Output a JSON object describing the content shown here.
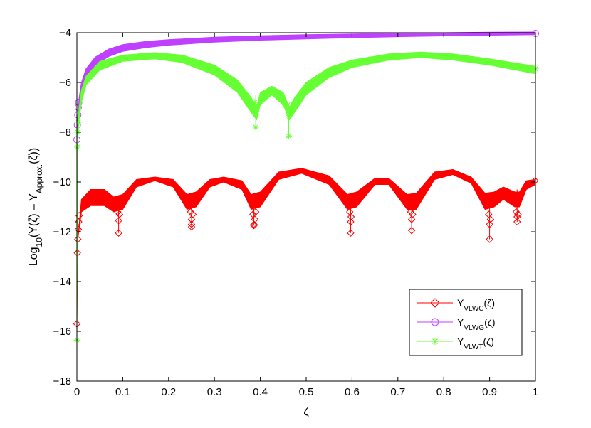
{
  "chart_data": {
    "type": "line",
    "xlabel": "ζ",
    "ylabel": {
      "prefix": "Log",
      "prefix_sub": "10",
      "body": "(Y(ζ) – Y",
      "body_sub": "Approx.",
      "suffix": "(ζ))"
    },
    "xlim": [
      0,
      1
    ],
    "ylim": [
      -18,
      -4
    ],
    "xticks": [
      0,
      0.1,
      0.2,
      0.3,
      0.4,
      0.5,
      0.6,
      0.7,
      0.8,
      0.9,
      1
    ],
    "yticks": [
      -18,
      -16,
      -14,
      -12,
      -10,
      -8,
      -6,
      -4
    ],
    "xtick_labels": [
      "0",
      "0.1",
      "0.2",
      "0.3",
      "0.4",
      "0.5",
      "0.6",
      "0.7",
      "0.8",
      "0.9",
      "1"
    ],
    "ytick_labels": [
      "−18",
      "−16",
      "−14",
      "−12",
      "−10",
      "−8",
      "−6",
      "−4"
    ],
    "grid": false,
    "legend_position": "lower-right",
    "series": [
      {
        "id": "vlwc",
        "legend": {
          "main": "Y",
          "sub": "VLWC",
          "tail": "(ζ)"
        },
        "color": "#ff0000",
        "marker": "diamond",
        "band_lower": [
          [
            0.002,
            -12.3
          ],
          [
            0.01,
            -11.2
          ],
          [
            0.03,
            -10.95
          ],
          [
            0.06,
            -10.95
          ],
          [
            0.08,
            -11.2
          ],
          [
            0.1,
            -11.1
          ],
          [
            0.13,
            -10.2
          ],
          [
            0.17,
            -9.95
          ],
          [
            0.21,
            -10.2
          ],
          [
            0.24,
            -11.1
          ],
          [
            0.26,
            -11.0
          ],
          [
            0.29,
            -10.2
          ],
          [
            0.32,
            -10.0
          ],
          [
            0.36,
            -10.3
          ],
          [
            0.38,
            -11.1
          ],
          [
            0.4,
            -11.0
          ],
          [
            0.44,
            -9.9
          ],
          [
            0.49,
            -9.65
          ],
          [
            0.55,
            -10.1
          ],
          [
            0.59,
            -11.1
          ],
          [
            0.61,
            -11.0
          ],
          [
            0.65,
            -10.1
          ],
          [
            0.68,
            -10.1
          ],
          [
            0.72,
            -11.1
          ],
          [
            0.74,
            -11.1
          ],
          [
            0.78,
            -9.9
          ],
          [
            0.82,
            -9.7
          ],
          [
            0.86,
            -10.05
          ],
          [
            0.89,
            -11.1
          ],
          [
            0.91,
            -11.0
          ],
          [
            0.93,
            -10.7
          ],
          [
            0.955,
            -11.0
          ],
          [
            0.965,
            -11.0
          ],
          [
            0.98,
            -10.3
          ],
          [
            1.0,
            -10.1
          ]
        ],
        "band_upper": [
          [
            0.002,
            -12.3
          ],
          [
            0.01,
            -10.7
          ],
          [
            0.03,
            -10.3
          ],
          [
            0.06,
            -10.3
          ],
          [
            0.08,
            -10.6
          ],
          [
            0.1,
            -10.5
          ],
          [
            0.13,
            -9.9
          ],
          [
            0.17,
            -9.8
          ],
          [
            0.21,
            -9.9
          ],
          [
            0.24,
            -10.5
          ],
          [
            0.26,
            -10.4
          ],
          [
            0.29,
            -9.9
          ],
          [
            0.32,
            -9.8
          ],
          [
            0.36,
            -9.95
          ],
          [
            0.38,
            -10.5
          ],
          [
            0.4,
            -10.4
          ],
          [
            0.44,
            -9.6
          ],
          [
            0.49,
            -9.45
          ],
          [
            0.55,
            -9.75
          ],
          [
            0.59,
            -10.5
          ],
          [
            0.61,
            -10.4
          ],
          [
            0.65,
            -9.85
          ],
          [
            0.68,
            -9.85
          ],
          [
            0.72,
            -10.5
          ],
          [
            0.74,
            -10.45
          ],
          [
            0.78,
            -9.6
          ],
          [
            0.82,
            -9.5
          ],
          [
            0.86,
            -9.8
          ],
          [
            0.89,
            -10.45
          ],
          [
            0.91,
            -10.4
          ],
          [
            0.93,
            -10.2
          ],
          [
            0.955,
            -10.4
          ],
          [
            0.965,
            -10.4
          ],
          [
            0.98,
            -9.95
          ],
          [
            1.0,
            -9.9
          ]
        ],
        "markers": [
          [
            0.0,
            -15.7
          ],
          [
            0.001,
            -12.85
          ],
          [
            0.002,
            -12.3
          ],
          [
            0.003,
            -11.9
          ],
          [
            0.004,
            -11.6
          ],
          [
            0.005,
            -11.35
          ],
          [
            0.091,
            -12.05
          ],
          [
            0.091,
            -11.55
          ],
          [
            0.093,
            -11.3
          ],
          [
            0.089,
            -11.2
          ],
          [
            0.25,
            -11.8
          ],
          [
            0.25,
            -11.7
          ],
          [
            0.25,
            -11.5
          ],
          [
            0.253,
            -11.3
          ],
          [
            0.248,
            -11.2
          ],
          [
            0.386,
            -11.75
          ],
          [
            0.386,
            -11.7
          ],
          [
            0.388,
            -11.5
          ],
          [
            0.384,
            -11.3
          ],
          [
            0.39,
            -11.2
          ],
          [
            0.597,
            -12.05
          ],
          [
            0.597,
            -11.6
          ],
          [
            0.598,
            -11.4
          ],
          [
            0.595,
            -11.2
          ],
          [
            0.73,
            -11.95
          ],
          [
            0.73,
            -11.5
          ],
          [
            0.732,
            -11.3
          ],
          [
            0.728,
            -11.2
          ],
          [
            0.9,
            -12.3
          ],
          [
            0.9,
            -11.7
          ],
          [
            0.902,
            -11.5
          ],
          [
            0.898,
            -11.3
          ],
          [
            0.96,
            -11.6
          ],
          [
            0.96,
            -11.4
          ],
          [
            0.962,
            -11.3
          ],
          [
            0.958,
            -11.2
          ],
          [
            0.999,
            -9.95
          ]
        ],
        "spikes": [
          [
            0.091,
            -12.05
          ],
          [
            0.25,
            -11.8
          ],
          [
            0.386,
            -11.75
          ],
          [
            0.597,
            -12.05
          ],
          [
            0.73,
            -11.95
          ],
          [
            0.9,
            -12.3
          ],
          [
            0.96,
            -11.6
          ]
        ]
      },
      {
        "id": "vlwg",
        "legend": {
          "main": "Y",
          "sub": "VLWG",
          "tail": "(ζ)"
        },
        "color": "#bf40ff",
        "marker": "circle",
        "band_lower": [
          [
            0.002,
            -8.0
          ],
          [
            0.005,
            -7.1
          ],
          [
            0.01,
            -6.4
          ],
          [
            0.02,
            -5.8
          ],
          [
            0.04,
            -5.3
          ],
          [
            0.07,
            -4.95
          ],
          [
            0.1,
            -4.75
          ],
          [
            0.15,
            -4.6
          ],
          [
            0.2,
            -4.5
          ],
          [
            0.3,
            -4.38
          ],
          [
            0.4,
            -4.3
          ],
          [
            0.5,
            -4.25
          ],
          [
            0.6,
            -4.2
          ],
          [
            0.7,
            -4.16
          ],
          [
            0.8,
            -4.13
          ],
          [
            0.9,
            -4.1
          ],
          [
            1.0,
            -4.08
          ]
        ],
        "band_upper": [
          [
            0.002,
            -7.3
          ],
          [
            0.005,
            -6.6
          ],
          [
            0.01,
            -6.0
          ],
          [
            0.02,
            -5.45
          ],
          [
            0.04,
            -4.98
          ],
          [
            0.07,
            -4.65
          ],
          [
            0.1,
            -4.48
          ],
          [
            0.15,
            -4.35
          ],
          [
            0.2,
            -4.28
          ],
          [
            0.3,
            -4.18
          ],
          [
            0.4,
            -4.12
          ],
          [
            0.5,
            -4.08
          ],
          [
            0.6,
            -4.05
          ],
          [
            0.7,
            -4.02
          ],
          [
            0.8,
            -4.0
          ],
          [
            0.9,
            -3.98
          ],
          [
            1.0,
            -3.97
          ]
        ],
        "markers": [
          [
            0.0,
            -8.3
          ],
          [
            0.001,
            -7.7
          ],
          [
            0.002,
            -7.3
          ],
          [
            0.003,
            -7.0
          ],
          [
            0.004,
            -6.8
          ],
          [
            1.0,
            -4.03
          ]
        ],
        "spikes": []
      },
      {
        "id": "vlwt",
        "legend": {
          "main": "Y",
          "sub": "VLWT",
          "tail": "(ζ)"
        },
        "color": "#66ff33",
        "marker": "star",
        "band_lower": [
          [
            0.002,
            -8.3
          ],
          [
            0.005,
            -7.5
          ],
          [
            0.01,
            -6.8
          ],
          [
            0.02,
            -6.1
          ],
          [
            0.05,
            -5.5
          ],
          [
            0.1,
            -5.15
          ],
          [
            0.17,
            -5.05
          ],
          [
            0.23,
            -5.2
          ],
          [
            0.3,
            -5.7
          ],
          [
            0.35,
            -6.4
          ],
          [
            0.38,
            -7.2
          ],
          [
            0.392,
            -7.5
          ],
          [
            0.4,
            -6.9
          ],
          [
            0.425,
            -6.5
          ],
          [
            0.45,
            -6.9
          ],
          [
            0.463,
            -7.5
          ],
          [
            0.475,
            -7.2
          ],
          [
            0.5,
            -6.5
          ],
          [
            0.55,
            -5.8
          ],
          [
            0.6,
            -5.4
          ],
          [
            0.68,
            -5.1
          ],
          [
            0.75,
            -5.0
          ],
          [
            0.82,
            -5.1
          ],
          [
            0.9,
            -5.3
          ],
          [
            1.0,
            -5.65
          ]
        ],
        "band_upper": [
          [
            0.002,
            -7.8
          ],
          [
            0.005,
            -7.0
          ],
          [
            0.01,
            -6.3
          ],
          [
            0.02,
            -5.75
          ],
          [
            0.05,
            -5.15
          ],
          [
            0.1,
            -4.9
          ],
          [
            0.17,
            -4.8
          ],
          [
            0.23,
            -4.9
          ],
          [
            0.3,
            -5.3
          ],
          [
            0.35,
            -5.9
          ],
          [
            0.38,
            -6.6
          ],
          [
            0.392,
            -7.0
          ],
          [
            0.4,
            -6.4
          ],
          [
            0.425,
            -6.15
          ],
          [
            0.45,
            -6.4
          ],
          [
            0.463,
            -7.0
          ],
          [
            0.475,
            -6.6
          ],
          [
            0.5,
            -6.0
          ],
          [
            0.55,
            -5.4
          ],
          [
            0.6,
            -5.1
          ],
          [
            0.68,
            -4.85
          ],
          [
            0.75,
            -4.78
          ],
          [
            0.82,
            -4.85
          ],
          [
            0.9,
            -5.05
          ],
          [
            1.0,
            -5.35
          ]
        ],
        "markers": [
          [
            0.0,
            -16.35
          ],
          [
            0.001,
            -8.6
          ],
          [
            0.002,
            -8.0
          ],
          [
            0.003,
            -7.6
          ],
          [
            0.39,
            -7.8
          ],
          [
            0.39,
            -7.3
          ],
          [
            0.392,
            -7.0
          ],
          [
            0.388,
            -6.8
          ],
          [
            0.462,
            -8.15
          ],
          [
            0.462,
            -7.4
          ],
          [
            0.464,
            -7.1
          ],
          [
            0.46,
            -6.9
          ],
          [
            1.0,
            -5.45
          ]
        ],
        "spikes": [
          [
            0.39,
            -7.8
          ],
          [
            0.462,
            -8.15
          ]
        ]
      }
    ]
  }
}
